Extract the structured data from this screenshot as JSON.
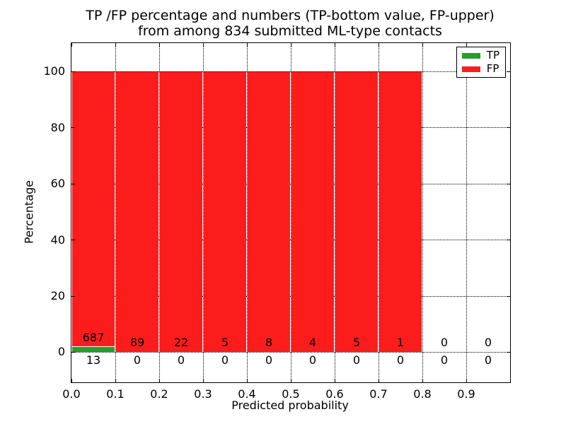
{
  "title": {
    "line1": "TP /FP percentage and numbers (TP-bottom value, FP-upper)",
    "line2": "from among 834 submitted ML-type contacts"
  },
  "axes": {
    "xlabel": "Predicted probability",
    "ylabel": "Percentage",
    "xtick_labels": [
      "0.0",
      "0.1",
      "0.2",
      "0.3",
      "0.4",
      "0.5",
      "0.6",
      "0.7",
      "0.8",
      "0.9"
    ],
    "ytick_labels": [
      "0",
      "20",
      "40",
      "60",
      "80",
      "100"
    ],
    "yticks": [
      0,
      20,
      40,
      60,
      80,
      100
    ],
    "xlim": [
      0.0,
      1.0
    ],
    "ylim_display": [
      -10.7,
      110.1
    ],
    "grid_style": "dotted"
  },
  "legend": {
    "position": "upper right",
    "items": [
      {
        "label": "TP",
        "color": "#22a02b"
      },
      {
        "label": "FP",
        "color": "#fc1c1c"
      }
    ]
  },
  "chart_data": {
    "type": "bar",
    "stacked": true,
    "title": "TP /FP percentage and numbers (TP-bottom value, FP-upper) from among 834 submitted ML-type contacts",
    "xlabel": "Predicted probability",
    "ylabel": "Percentage",
    "total_contacts": 834,
    "bin_width": 0.1,
    "bin_starts": [
      0.0,
      0.1,
      0.2,
      0.3,
      0.4,
      0.5,
      0.6,
      0.7,
      0.8,
      0.9
    ],
    "categories": [
      "0.0-0.1",
      "0.1-0.2",
      "0.2-0.3",
      "0.3-0.4",
      "0.4-0.5",
      "0.5-0.6",
      "0.6-0.7",
      "0.7-0.8",
      "0.8-0.9",
      "0.9-1.0"
    ],
    "series": [
      {
        "name": "TP",
        "color": "#22a02b",
        "counts": [
          13,
          0,
          0,
          0,
          0,
          0,
          0,
          0,
          0,
          0
        ],
        "percent": [
          1.857,
          0,
          0,
          0,
          0,
          0,
          0,
          0,
          0,
          0
        ]
      },
      {
        "name": "FP",
        "color": "#fc1c1c",
        "counts": [
          687,
          89,
          22,
          5,
          8,
          4,
          5,
          1,
          0,
          0
        ],
        "percent": [
          98.143,
          100,
          100,
          100,
          100,
          100,
          100,
          100,
          0,
          0
        ]
      }
    ],
    "ylim": [
      -10.7,
      110.1
    ],
    "legend_position": "upper right",
    "grid": "dotted"
  }
}
